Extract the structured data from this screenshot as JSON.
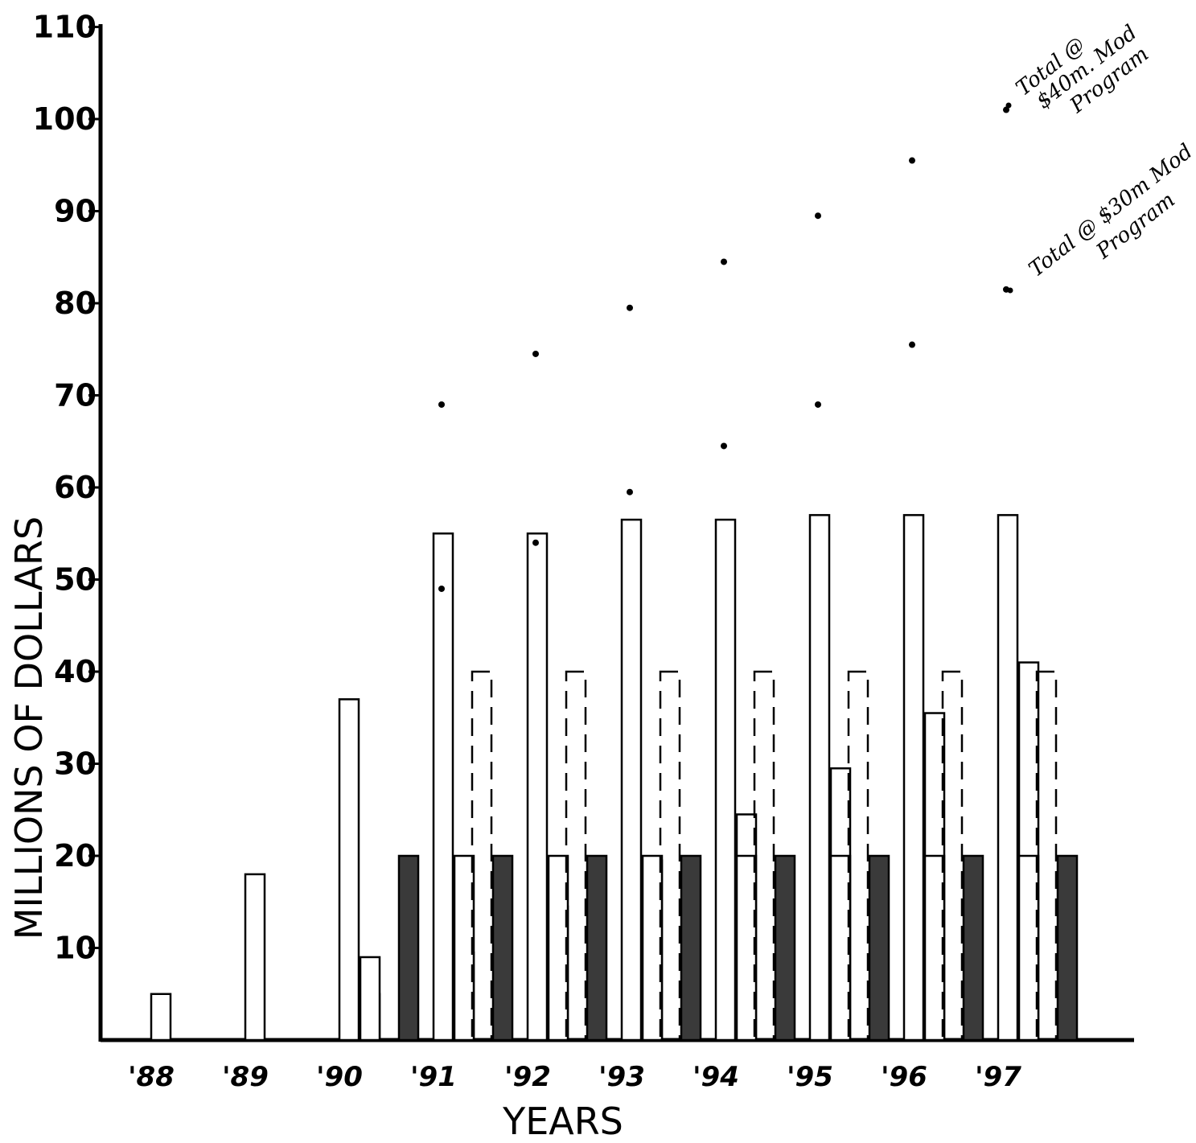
{
  "chart_data": {
    "type": "bar",
    "xlabel": "YEARS",
    "ylabel": "MILLIONS OF DOLLARS",
    "ylim": [
      0,
      110
    ],
    "yticks": [
      "10",
      "20",
      "30",
      "40",
      "50",
      "60",
      "70",
      "80",
      "90",
      "100",
      "110"
    ],
    "categories": [
      "'88",
      "'89",
      "'90",
      "'91",
      "'92",
      "'93",
      "'94",
      "'95",
      "'96",
      "'97"
    ],
    "series": [
      {
        "style": "outline",
        "values": [
          5,
          18,
          37,
          55,
          55,
          56.5,
          56.5,
          57,
          57,
          57
        ]
      },
      {
        "style": "outline",
        "values": [
          null,
          null,
          5,
          9.5,
          14.5,
          19.5,
          24.5,
          29.5,
          35.5,
          41
        ]
      },
      {
        "style": "outline",
        "values": [
          null,
          null,
          9,
          20,
          20,
          20,
          20,
          20,
          20,
          20
        ]
      },
      {
        "style": "dashed",
        "values": [
          null,
          null,
          null,
          40,
          40,
          40,
          40,
          40,
          40,
          40
        ]
      },
      {
        "style": "filled",
        "values": [
          null,
          null,
          20,
          20,
          20,
          20,
          20,
          20,
          20,
          20
        ]
      }
    ],
    "totals": [
      {
        "label": "Total @ $40m. Mod Program",
        "values": [
          null,
          null,
          null,
          49,
          54,
          59.5,
          64.5,
          69,
          75.5,
          81.5
        ]
      },
      {
        "label": "Total @ $30m Mod Program",
        "values": [
          null,
          null,
          null,
          69,
          74.5,
          79.5,
          84.5,
          89.5,
          95.5,
          101
        ]
      }
    ],
    "annotations": [
      {
        "lines": [
          "Total @",
          "$40m. Mod",
          "Program"
        ]
      },
      {
        "lines": [
          "Total @ $30m Mod",
          "Program"
        ]
      }
    ],
    "grid": false,
    "legend": "none"
  },
  "colors": {
    "ink": "#000000",
    "paper": "#ffffff",
    "fill_dark": "#3a3a3a",
    "fill_light": "#ffffff"
  }
}
